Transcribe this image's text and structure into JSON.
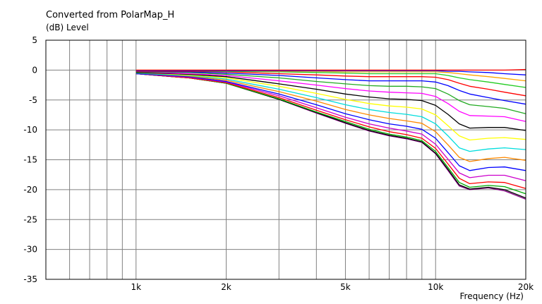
{
  "chart_data": {
    "type": "line",
    "title": "Converted from PolarMap_H",
    "ylabel": "(dB)  Level",
    "xlabel": "Frequency  (Hz)",
    "xscale": "log",
    "xlim": [
      500,
      20000
    ],
    "ylim": [
      -35,
      5
    ],
    "yticks": [
      5,
      0,
      -5,
      -10,
      -15,
      -20,
      -25,
      -30,
      -35
    ],
    "xtick_labels": [
      {
        "value": 1000,
        "label": "1k"
      },
      {
        "value": 2000,
        "label": "2k"
      },
      {
        "value": 5000,
        "label": "5k"
      },
      {
        "value": 10000,
        "label": "10k"
      },
      {
        "value": 20000,
        "label": "20k"
      }
    ],
    "grid": true,
    "legend": "none",
    "x": [
      1000,
      1500,
      2000,
      3000,
      4000,
      5000,
      6000,
      7000,
      8000,
      9000,
      10000,
      11000,
      12000,
      13000,
      15000,
      17000,
      20000
    ],
    "series": [
      {
        "color": "#ff0000",
        "values": [
          0.0,
          0.0,
          0.0,
          0.0,
          0.0,
          0.0,
          0.0,
          0.0,
          0.0,
          0.0,
          0.0,
          0.0,
          0.0,
          0.0,
          0.0,
          0.0,
          0.1
        ]
      },
      {
        "color": "#0000ff",
        "values": [
          -0.1,
          -0.1,
          -0.1,
          -0.1,
          -0.1,
          -0.1,
          -0.1,
          -0.1,
          -0.1,
          -0.1,
          -0.1,
          -0.2,
          -0.2,
          -0.3,
          -0.4,
          -0.6,
          -0.8
        ]
      },
      {
        "color": "#ffa500",
        "values": [
          -0.1,
          -0.1,
          -0.1,
          -0.2,
          -0.2,
          -0.3,
          -0.3,
          -0.3,
          -0.3,
          -0.3,
          -0.3,
          -0.4,
          -0.6,
          -0.8,
          -1.1,
          -1.4,
          -1.8
        ]
      },
      {
        "color": "#22cc22",
        "values": [
          -0.1,
          -0.1,
          -0.2,
          -0.3,
          -0.4,
          -0.5,
          -0.6,
          -0.6,
          -0.6,
          -0.6,
          -0.6,
          -0.9,
          -1.3,
          -1.6,
          -2.0,
          -2.4,
          -2.9
        ]
      },
      {
        "color": "#ff0000",
        "values": [
          -0.2,
          -0.2,
          -0.3,
          -0.6,
          -0.8,
          -1.0,
          -1.1,
          -1.1,
          -1.1,
          -1.1,
          -1.2,
          -1.6,
          -2.2,
          -2.7,
          -3.2,
          -3.7,
          -4.3
        ]
      },
      {
        "color": "#0000ff",
        "values": [
          -0.2,
          -0.3,
          -0.5,
          -0.9,
          -1.3,
          -1.6,
          -1.8,
          -1.8,
          -1.8,
          -1.8,
          -2.0,
          -2.6,
          -3.4,
          -4.0,
          -4.6,
          -5.1,
          -5.7
        ]
      },
      {
        "color": "#22aa22",
        "values": [
          -0.3,
          -0.4,
          -0.7,
          -1.3,
          -1.9,
          -2.3,
          -2.6,
          -2.7,
          -2.7,
          -2.8,
          -3.1,
          -4.0,
          -5.1,
          -5.8,
          -6.1,
          -6.4,
          -7.3
        ]
      },
      {
        "color": "#ff00ff",
        "values": [
          -0.3,
          -0.6,
          -0.9,
          -1.8,
          -2.5,
          -3.1,
          -3.5,
          -3.7,
          -3.8,
          -3.9,
          -4.4,
          -5.6,
          -6.9,
          -7.6,
          -7.7,
          -7.8,
          -8.6
        ]
      },
      {
        "color": "#000000",
        "values": [
          -0.4,
          -0.7,
          -1.1,
          -2.3,
          -3.2,
          -4.0,
          -4.5,
          -4.8,
          -4.9,
          -5.1,
          -5.9,
          -7.4,
          -9.0,
          -9.7,
          -9.6,
          -9.6,
          -10.1
        ]
      },
      {
        "color": "#ffff00",
        "values": [
          -0.4,
          -0.8,
          -1.3,
          -2.7,
          -3.9,
          -4.9,
          -5.6,
          -6.0,
          -6.2,
          -6.5,
          -7.5,
          -9.3,
          -11.0,
          -11.7,
          -11.4,
          -11.3,
          -11.6
        ]
      },
      {
        "color": "#00dddd",
        "values": [
          -0.5,
          -0.9,
          -1.5,
          -3.2,
          -4.6,
          -5.8,
          -6.6,
          -7.1,
          -7.4,
          -7.8,
          -9.0,
          -11.0,
          -13.0,
          -13.6,
          -13.2,
          -13.0,
          -13.3
        ]
      },
      {
        "color": "#ff8800",
        "values": [
          -0.5,
          -1.0,
          -1.7,
          -3.6,
          -5.2,
          -6.6,
          -7.5,
          -8.1,
          -8.5,
          -8.9,
          -10.3,
          -12.5,
          -14.6,
          -15.3,
          -14.8,
          -14.6,
          -15.1
        ]
      },
      {
        "color": "#0000ff",
        "values": [
          -0.6,
          -1.1,
          -1.9,
          -4.0,
          -5.8,
          -7.3,
          -8.3,
          -9.0,
          -9.4,
          -9.9,
          -11.4,
          -13.8,
          -16.0,
          -16.8,
          -16.3,
          -16.2,
          -16.8
        ]
      },
      {
        "color": "#cc00cc",
        "values": [
          -0.6,
          -1.2,
          -2.0,
          -4.3,
          -6.3,
          -7.9,
          -9.0,
          -9.7,
          -10.2,
          -10.7,
          -12.4,
          -14.9,
          -17.2,
          -18.0,
          -17.6,
          -17.6,
          -18.5
        ]
      },
      {
        "color": "#ff0000",
        "values": [
          -0.6,
          -1.3,
          -2.1,
          -4.6,
          -6.7,
          -8.3,
          -9.5,
          -10.3,
          -10.8,
          -11.4,
          -13.1,
          -15.7,
          -18.1,
          -19.0,
          -18.7,
          -18.8,
          -19.8
        ]
      },
      {
        "color": "#00aa00",
        "values": [
          -0.6,
          -1.3,
          -2.2,
          -4.8,
          -7.0,
          -8.6,
          -9.9,
          -10.7,
          -11.2,
          -11.8,
          -13.6,
          -16.3,
          -18.8,
          -19.6,
          -19.3,
          -19.5,
          -20.7
        ]
      },
      {
        "color": "#000000",
        "values": [
          -0.6,
          -1.3,
          -2.2,
          -4.9,
          -7.1,
          -8.8,
          -10.1,
          -10.9,
          -11.4,
          -12.0,
          -13.9,
          -16.6,
          -19.2,
          -19.9,
          -19.6,
          -20.0,
          -21.4
        ]
      },
      {
        "color": "#880088",
        "values": [
          -0.6,
          -1.3,
          -2.2,
          -4.9,
          -7.2,
          -8.9,
          -10.2,
          -11.0,
          -11.5,
          -12.1,
          -14.0,
          -16.8,
          -19.4,
          -20.0,
          -19.7,
          -20.2,
          -21.6
        ]
      }
    ]
  }
}
